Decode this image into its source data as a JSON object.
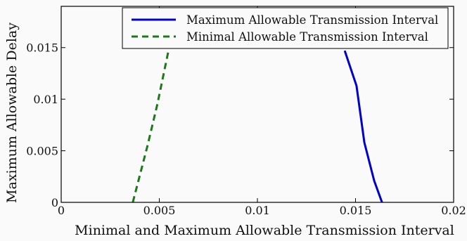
{
  "chart_data": {
    "type": "line",
    "title": "",
    "xlabel": "Minimal and Maximum Allowable Transmission Interval",
    "ylabel": "Maximum Allowable Delay",
    "xlim": [
      0,
      0.02
    ],
    "ylim": [
      0,
      0.019
    ],
    "x_ticks": [
      0,
      0.005,
      0.01,
      0.015,
      0.02
    ],
    "x_tick_labels": [
      "0",
      "0.005",
      "0.01",
      "0.015",
      "0.02"
    ],
    "y_ticks": [
      0,
      0.005,
      0.01,
      0.015
    ],
    "y_tick_labels": [
      "0",
      "0.005",
      "0.01",
      "0.015"
    ],
    "grid": false,
    "legend_position": "top-right",
    "series": [
      {
        "name": "Maximum Allowable Transmission Interval",
        "style": "solid",
        "color": "#0000cc",
        "points": [
          [
            0.01445,
            0.0147
          ],
          [
            0.01505,
            0.0113
          ],
          [
            0.01545,
            0.0058
          ],
          [
            0.01595,
            0.0021
          ],
          [
            0.01635,
            0.0
          ]
        ]
      },
      {
        "name": "Minimal Allowable Transmission Interval",
        "style": "dashed",
        "color": "#1a7a1a",
        "points": [
          [
            0.00365,
            0.0
          ],
          [
            0.0044,
            0.0055
          ],
          [
            0.0049,
            0.0095
          ],
          [
            0.0055,
            0.015
          ]
        ]
      }
    ]
  }
}
